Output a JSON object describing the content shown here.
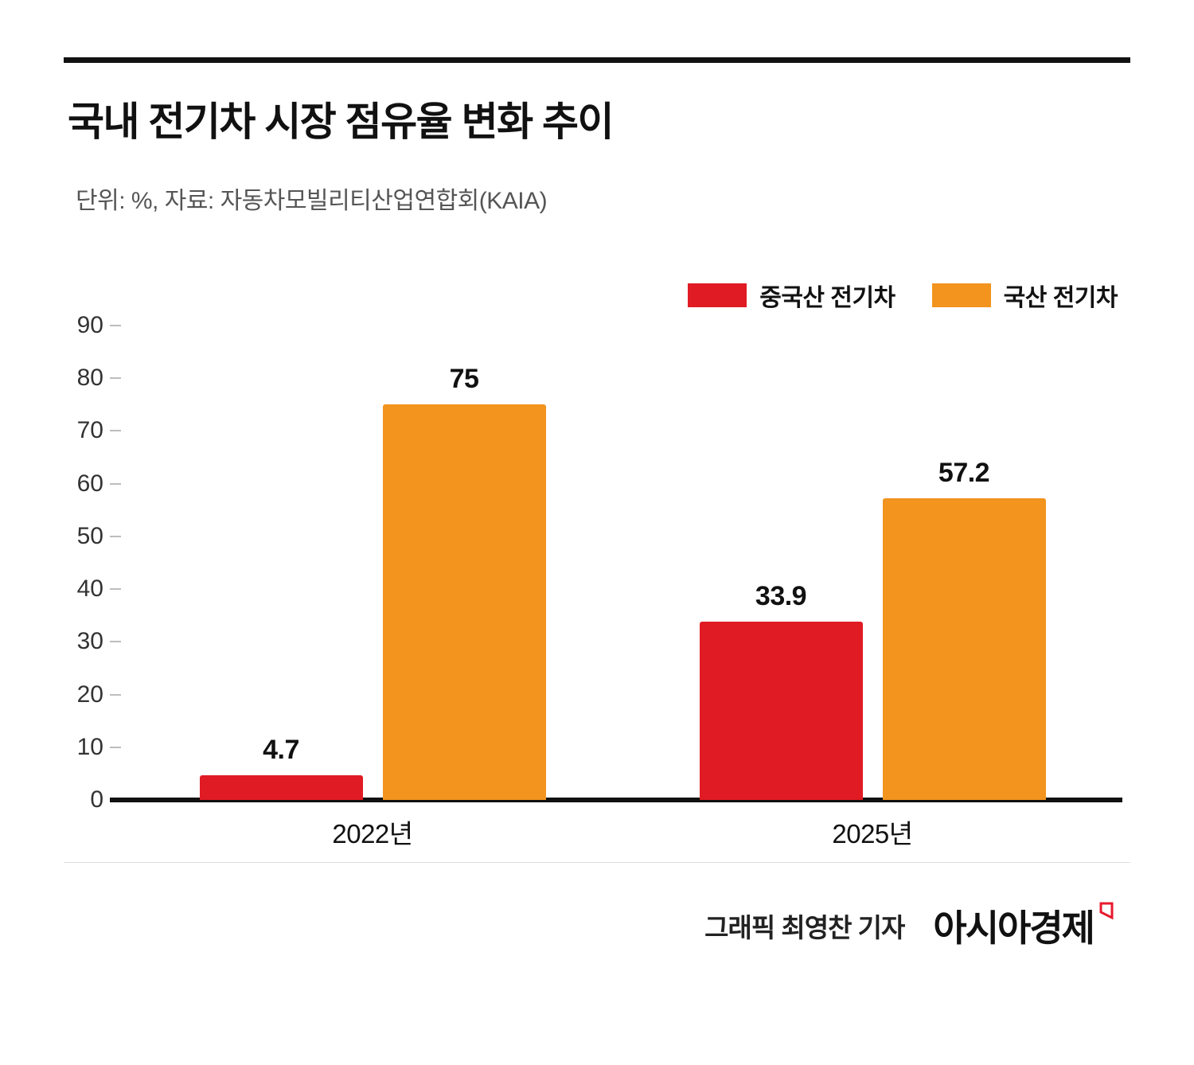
{
  "header": {
    "title": "국내 전기차 시장 점유율 변화 추이",
    "subtitle": "단위: %, 자료: 자동차모빌리티산업연합회(KAIA)"
  },
  "legend": [
    {
      "label": "중국산 전기차",
      "color": "#e01b24"
    },
    {
      "label": "국산 전기차",
      "color": "#f2941e"
    }
  ],
  "chart_data": {
    "type": "bar",
    "title": "국내 전기차 시장 점유율 변화 추이",
    "unit": "%",
    "source": "자동차모빌리티산업연합회(KAIA)",
    "categories": [
      "2022년",
      "2025년"
    ],
    "series": [
      {
        "name": "중국산 전기차",
        "color": "#e01b24",
        "values": [
          4.7,
          33.9
        ]
      },
      {
        "name": "국산 전기차",
        "color": "#f2941e",
        "values": [
          75,
          57.2
        ]
      }
    ],
    "ylim": [
      0,
      90
    ],
    "yticks": [
      0,
      10,
      20,
      30,
      40,
      50,
      60,
      70,
      80,
      90
    ],
    "grid": false,
    "legend_position": "top-right"
  },
  "footer": {
    "credit": "그래픽  최영찬 기자",
    "logo": "아시아경제"
  }
}
